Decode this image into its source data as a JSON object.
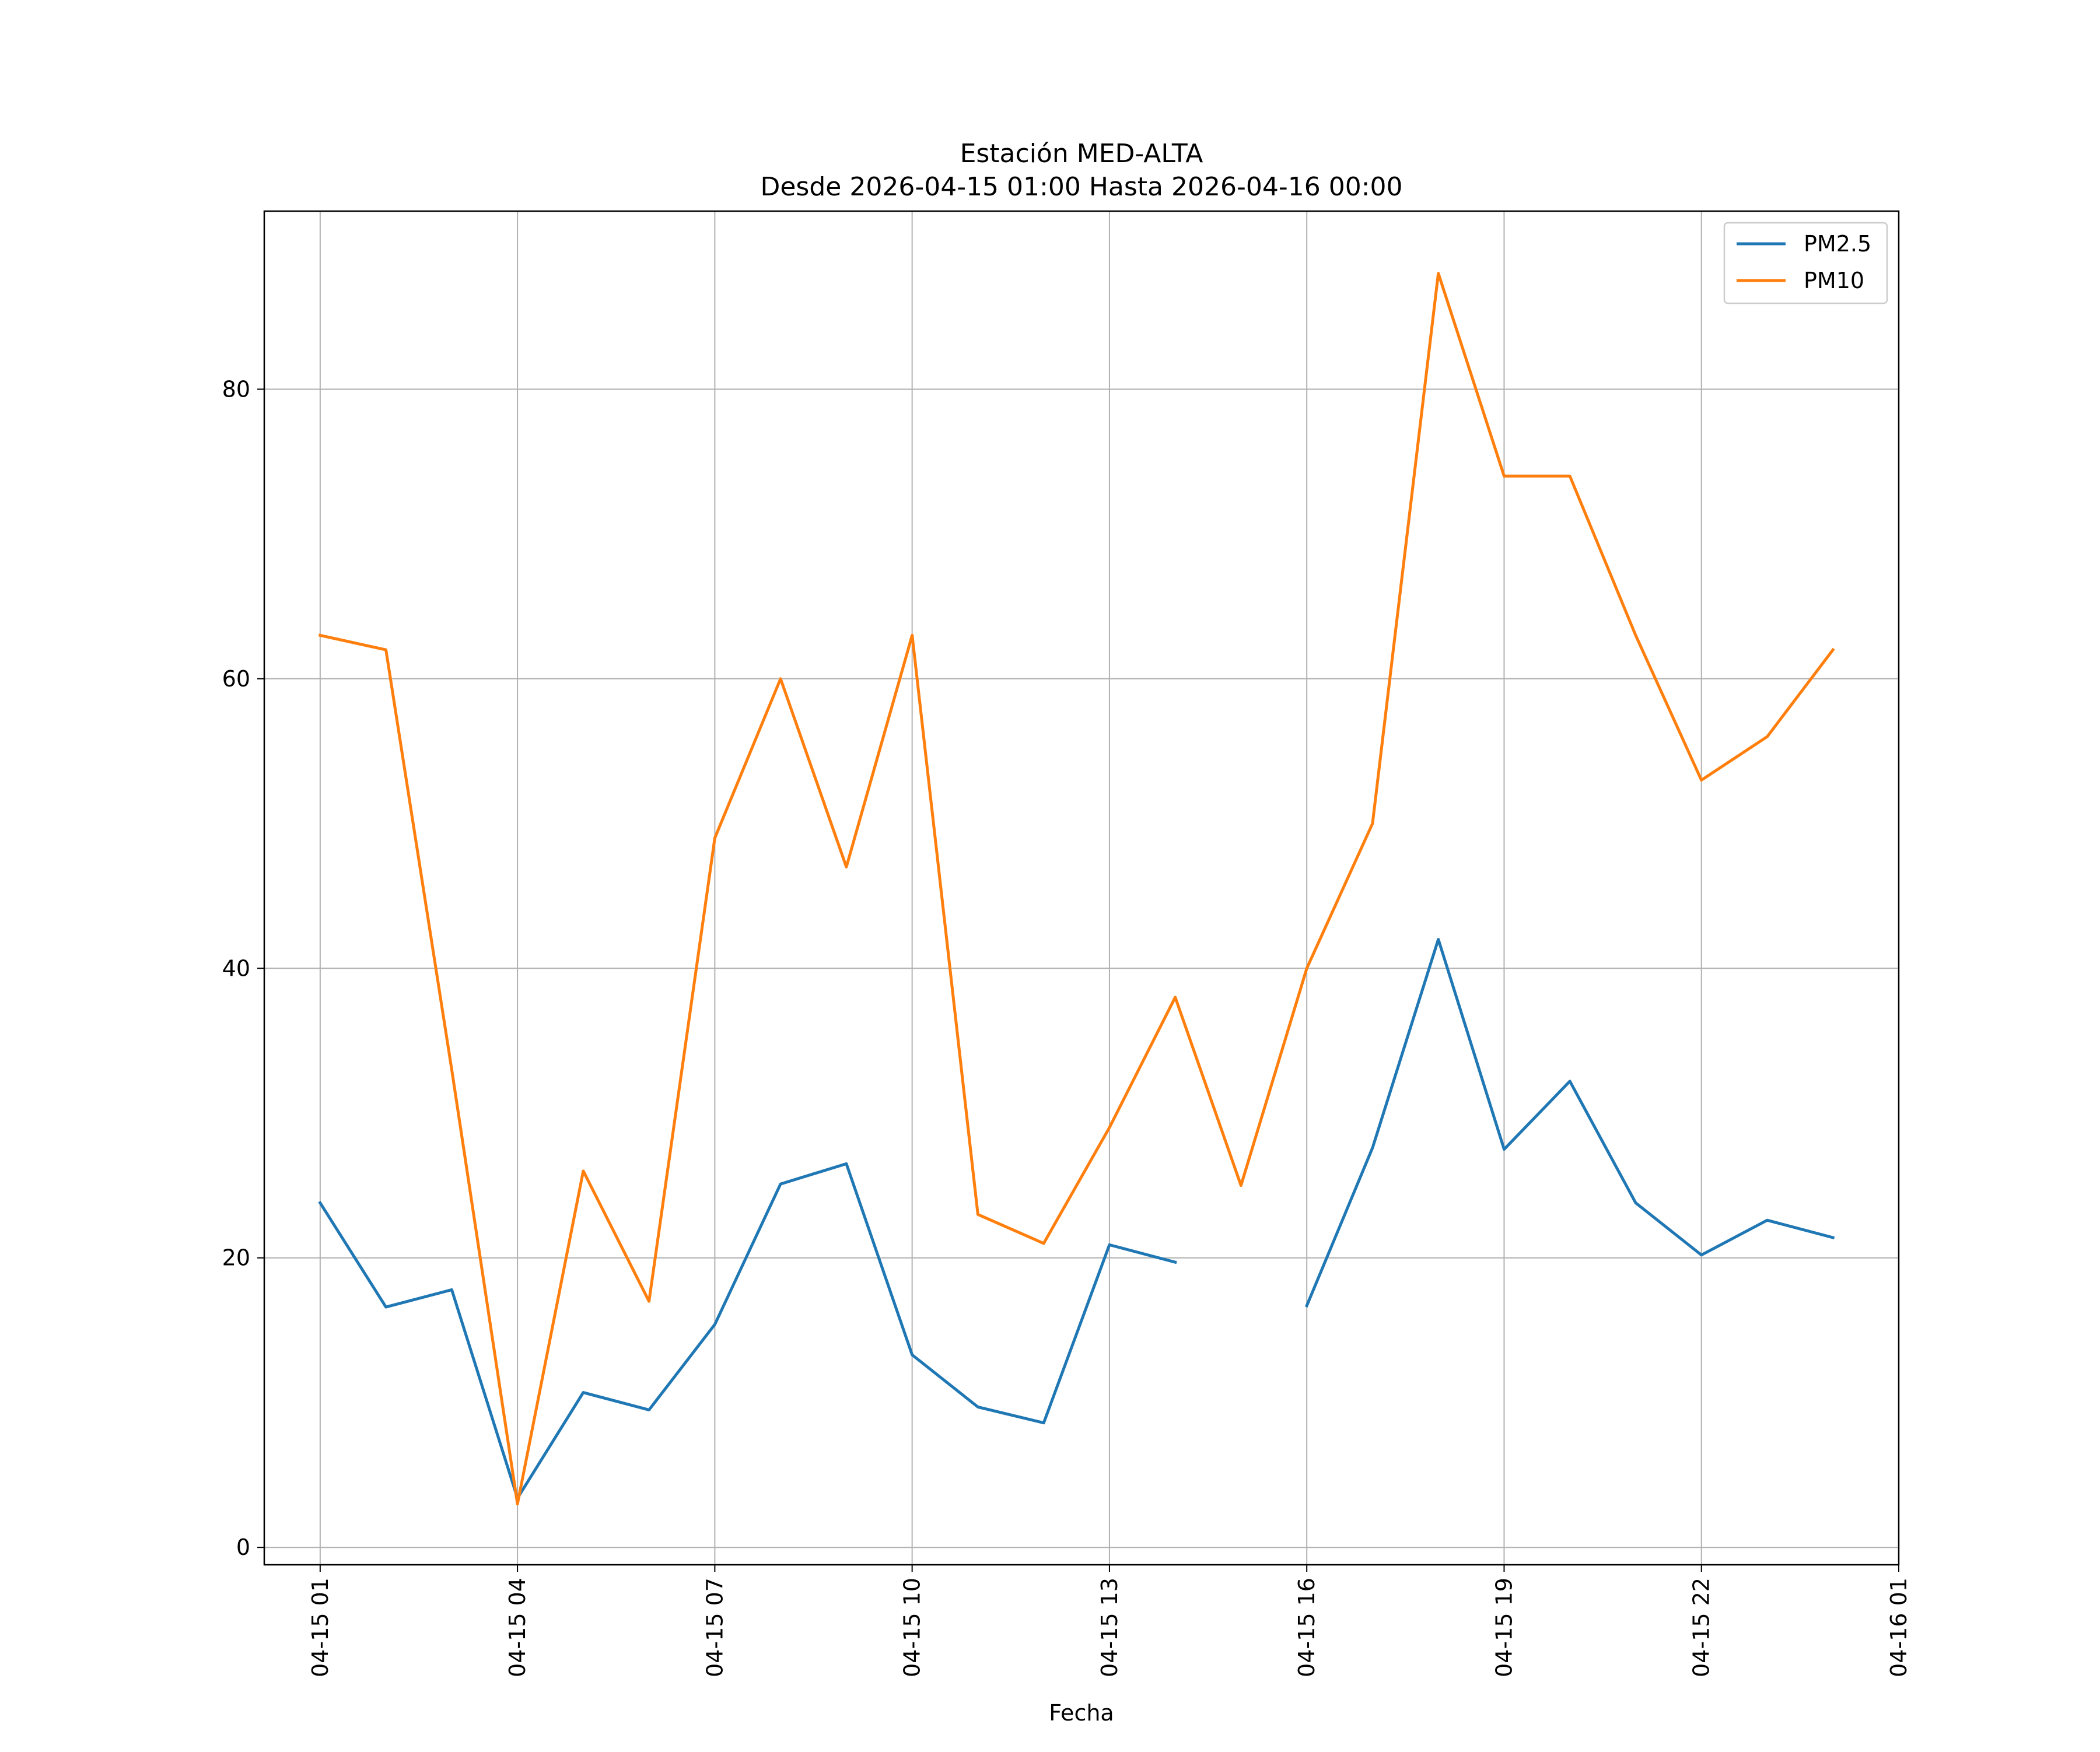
{
  "chart_data": {
    "type": "line",
    "title": "Estación MED-ALTA",
    "subtitle": "Desde 2026-04-15 01:00 Hasta 2026-04-16 00:00",
    "xlabel": "Fecha",
    "ylabel": "",
    "x_hours": [
      1,
      2,
      3,
      4,
      5,
      6,
      7,
      8,
      9,
      10,
      11,
      12,
      13,
      14,
      15,
      16,
      17,
      18,
      19,
      20,
      21,
      22,
      23,
      24
    ],
    "xlim": [
      0.15,
      25.0
    ],
    "ylim": [
      -1.2,
      92.3
    ],
    "x_ticks": [
      {
        "hour": 1,
        "label": "04-15 01"
      },
      {
        "hour": 4,
        "label": "04-15 04"
      },
      {
        "hour": 7,
        "label": "04-15 07"
      },
      {
        "hour": 10,
        "label": "04-15 10"
      },
      {
        "hour": 13,
        "label": "04-15 13"
      },
      {
        "hour": 16,
        "label": "04-15 16"
      },
      {
        "hour": 19,
        "label": "04-15 19"
      },
      {
        "hour": 22,
        "label": "04-15 22"
      },
      {
        "hour": 25,
        "label": "04-16 01"
      }
    ],
    "y_ticks": [
      {
        "value": 0,
        "label": "0"
      },
      {
        "value": 20,
        "label": "20"
      },
      {
        "value": 40,
        "label": "40"
      },
      {
        "value": 60,
        "label": "60"
      },
      {
        "value": 80,
        "label": "80"
      }
    ],
    "grid": true,
    "legend_position": "top-right",
    "series": [
      {
        "name": "PM2.5",
        "color": "#1f77b4",
        "values": [
          23.8,
          16.6,
          17.8,
          3.4,
          10.7,
          9.5,
          15.4,
          25.1,
          26.5,
          13.3,
          9.7,
          8.6,
          20.9,
          19.7,
          null,
          16.7,
          27.6,
          42.0,
          27.5,
          32.2,
          23.8,
          20.2,
          22.6,
          21.4
        ]
      },
      {
        "name": "PM10",
        "color": "#ff7f0e",
        "values": [
          63,
          62,
          33,
          3,
          26,
          17,
          49,
          60,
          47,
          63,
          23,
          21,
          29,
          38,
          25,
          40,
          50,
          88,
          74,
          74,
          63,
          53,
          56,
          62
        ]
      }
    ]
  }
}
